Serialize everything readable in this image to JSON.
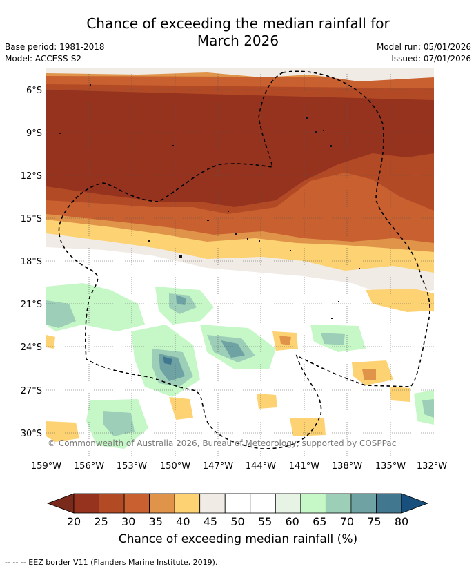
{
  "title_line1": "Chance of exceeding the median rainfall for",
  "title_line2": "March 2026",
  "base_period": "Base period: 1981-2018",
  "model": "Model: ACCESS-S2",
  "model_run": "Model run: 05/01/2026",
  "issued": "Issued: 07/01/2026",
  "map": {
    "lat_labels": [
      "6°S",
      "9°S",
      "12°S",
      "15°S",
      "18°S",
      "21°S",
      "24°S",
      "27°S",
      "30°S"
    ],
    "lon_labels": [
      "159°W",
      "156°W",
      "153°W",
      "150°W",
      "147°W",
      "144°W",
      "141°W",
      "138°W",
      "135°W",
      "132°W"
    ],
    "copyright": "© Commonwealth of Australia 2026, Bureau of Meteorology, supported by COSPPac"
  },
  "colorbar": {
    "ticks": [
      "20",
      "25",
      "30",
      "35",
      "40",
      "45",
      "50",
      "55",
      "60",
      "65",
      "70",
      "75",
      "80"
    ],
    "colors": [
      "#96331f",
      "#b34a26",
      "#c96030",
      "#e0944a",
      "#fdd273",
      "#f0ebe5",
      "#ffffff",
      "#ffffff",
      "#e7f4e5",
      "#c6f7c7",
      "#9dcfb8",
      "#6fa3a3",
      "#42788f"
    ],
    "low_color": "#7a2a1a",
    "high_color": "#194f7c",
    "label": "Chance of exceeding median rainfall (%)"
  },
  "footer": "--  --  -- EEZ border V11 (Flanders Marine Institute, 2019)."
}
